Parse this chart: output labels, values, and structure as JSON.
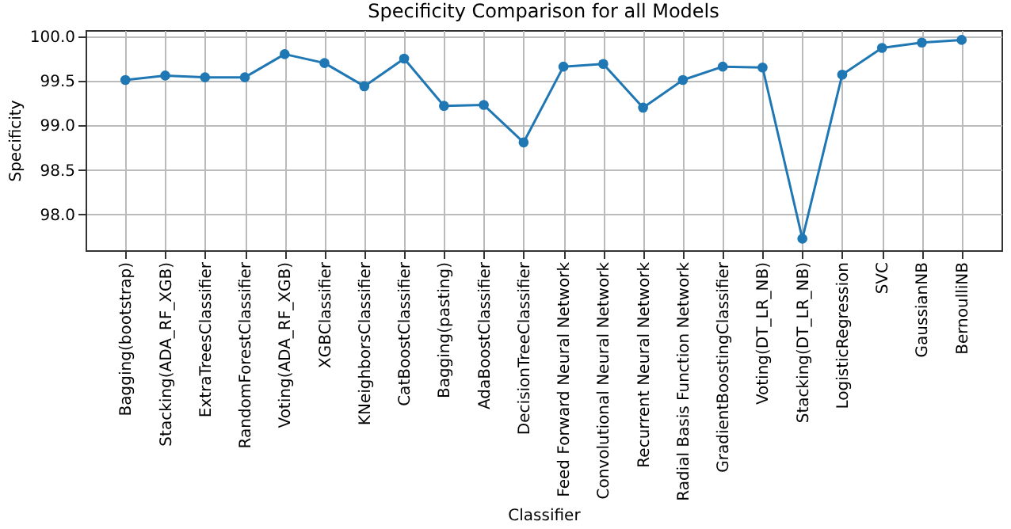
{
  "chart_data": {
    "type": "line",
    "title": "Specificity Comparison for all Models",
    "xlabel": "Classifier",
    "ylabel": "Specificity",
    "categories": [
      "Bagging(bootstrap)",
      "Stacking(ADA_RF_XGB)",
      "ExtraTreesClassifier",
      "RandomForestClassifier",
      "Voting(ADA_RF_XGB)",
      "XGBClassifier",
      "KNeighborsClassifier",
      "CatBoostClassifier",
      "Bagging(pasting)",
      "AdaBoostClassifier",
      "DecisionTreeClassifier",
      "Feed Forward Neural Network",
      "Convolutional Neural Network",
      "Recurrent Neural Network",
      "Radial Basis Function Network",
      "GradientBoostingClassifier",
      "Voting(DT_LR_NB)",
      "Stacking(DT_LR_NB)",
      "LogisticRegression",
      "SVC",
      "GaussianNB",
      "BernoulliNB"
    ],
    "series": [
      {
        "color": "#1f77b4",
        "values": [
          99.51,
          99.56,
          99.54,
          99.54,
          99.8,
          99.7,
          99.44,
          99.75,
          99.22,
          99.23,
          98.81,
          99.66,
          99.69,
          99.2,
          99.51,
          99.66,
          99.65,
          97.73,
          99.57,
          99.87,
          99.93,
          99.96
        ]
      }
    ],
    "ylim": [
      97.6,
      100.07
    ],
    "yticks": [
      {
        "value": 98,
        "label": "98.0"
      },
      {
        "value": 98.5,
        "label": "98.5"
      },
      {
        "value": 99,
        "label": "99.0"
      },
      {
        "value": 99.5,
        "label": "99.5"
      },
      {
        "value": 100,
        "label": "100.0"
      }
    ],
    "grid": true,
    "marker": "circle",
    "line_style": "solid"
  }
}
